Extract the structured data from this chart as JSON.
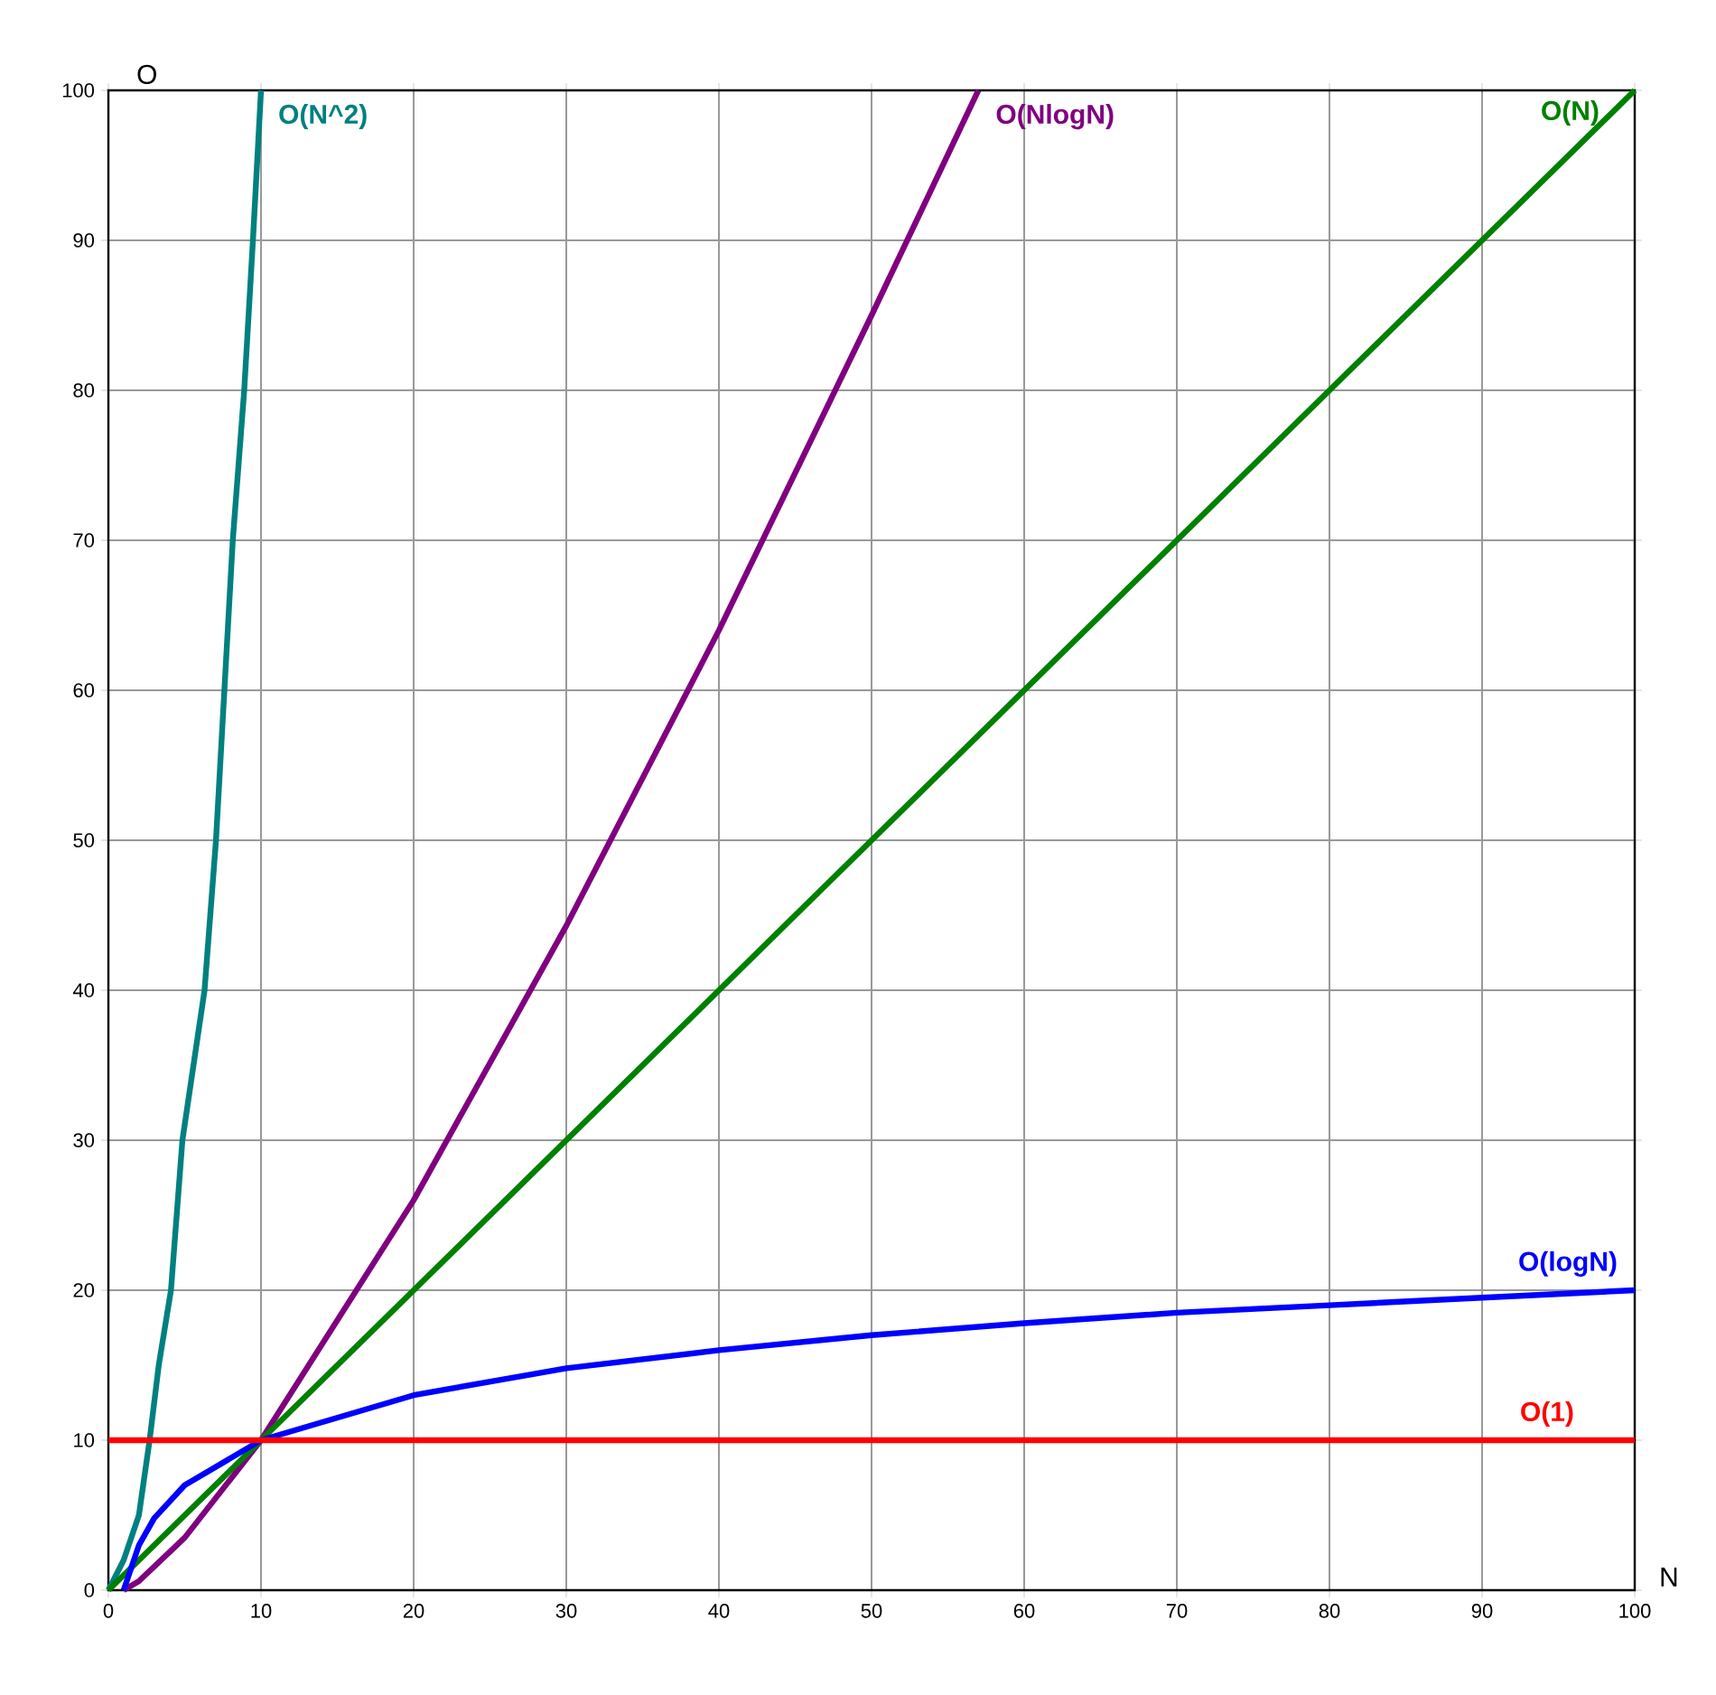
{
  "chart_data": {
    "type": "line",
    "xlabel": "N",
    "ylabel": "O",
    "xlim": [
      0,
      100
    ],
    "ylim": [
      0,
      100
    ],
    "xticks": [
      0,
      10,
      20,
      30,
      40,
      50,
      60,
      70,
      80,
      90,
      100
    ],
    "yticks": [
      0,
      10,
      20,
      30,
      40,
      50,
      60,
      70,
      80,
      90,
      100
    ],
    "grid": true,
    "legend": false,
    "marker": "none",
    "line_style": "solid",
    "series": [
      {
        "name": "O(N^2)",
        "color": "#008080",
        "x": [
          0,
          1,
          2,
          2.7,
          3.3,
          4.1,
          4.85,
          6.3,
          7.05,
          7.6,
          8.15,
          8.9,
          9.47,
          10
        ],
        "values": [
          0,
          2,
          5,
          10,
          15,
          20,
          30,
          40,
          50,
          60,
          70,
          80,
          90,
          100
        ]
      },
      {
        "name": "O(NlogN)",
        "color": "#800080",
        "x": [
          1,
          2,
          5,
          10,
          20,
          30,
          40,
          50,
          57
        ],
        "values": [
          0,
          0.6,
          3.5,
          10,
          26,
          44.3,
          64,
          85,
          100
        ]
      },
      {
        "name": "O(N)",
        "color": "#008000",
        "x": [
          0,
          100
        ],
        "values": [
          0,
          100
        ]
      },
      {
        "name": "O(logN)",
        "color": "#0000ff",
        "x": [
          1,
          2,
          3,
          5,
          10,
          20,
          30,
          40,
          50,
          60,
          70,
          80,
          90,
          100
        ],
        "values": [
          0,
          3,
          4.8,
          7,
          10,
          13,
          14.8,
          16,
          17,
          17.8,
          18.5,
          19,
          19.5,
          20
        ]
      },
      {
        "name": "O(1)",
        "color": "#ff0000",
        "x": [
          0,
          100
        ],
        "values": [
          10,
          10
        ]
      }
    ]
  }
}
